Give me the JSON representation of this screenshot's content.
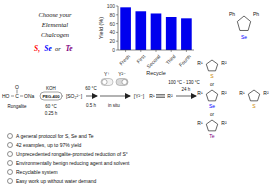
{
  "chart_data": {
    "type": "bar",
    "categories": [
      "Fresh",
      "First",
      "Second",
      "Third",
      "Fourth"
    ],
    "values": [
      97,
      88,
      83,
      75,
      72
    ],
    "color": "#0000ee",
    "xlabel": "Recycle",
    "ylabel": "Yield (%)",
    "ylim": [
      0,
      100
    ],
    "yticks": [
      0,
      20,
      40,
      60,
      80,
      100
    ],
    "grid": false,
    "annotations": [
      {
        "text": "Choose your"
      },
      {
        "text": "Elemental"
      },
      {
        "text": "Chalcogen"
      },
      {
        "text": "S,",
        "color": "red"
      },
      {
        "text": "Se",
        "color": "blue"
      },
      {
        "text": "or"
      },
      {
        "text": "Te",
        "color": "purple"
      },
      {
        "text": "HO"
      },
      {
        "text": "C"
      },
      {
        "text": "O"
      },
      {
        "text": "ONa"
      },
      {
        "text": "Rongalite"
      },
      {
        "text": "KOH"
      },
      {
        "text": "PEG-400"
      },
      {
        "text": "60 °C"
      },
      {
        "text": "0.25 h"
      },
      {
        "text": "[SO₂²⁻]"
      },
      {
        "text": "60 °C"
      },
      {
        "text": "0.5 h"
      },
      {
        "text": "Y⁺"
      },
      {
        "text": "Y²⁻"
      },
      {
        "text": "in situ"
      },
      {
        "text": "[Y²⁻]"
      },
      {
        "text": "R¹"
      },
      {
        "text": "R²"
      },
      {
        "text": "100 °C - 130 °C"
      },
      {
        "text": "24 h"
      },
      {
        "text": "R¹"
      },
      {
        "text": "R²"
      },
      {
        "text": "S",
        "color": "#cc8800"
      },
      {
        "text": "or"
      },
      {
        "text": "R¹"
      },
      {
        "text": "R²"
      },
      {
        "text": "Se",
        "color": "blue"
      },
      {
        "text": "or"
      },
      {
        "text": "R¹"
      },
      {
        "text": "R²"
      },
      {
        "text": "Te",
        "color": "purple"
      },
      {
        "text": "Ph"
      },
      {
        "text": "Ph"
      },
      {
        "text": "Se",
        "color": "blue"
      },
      {
        "text": "R¹"
      },
      {
        "text": "R²"
      },
      {
        "text": "S",
        "color": "#cc8800"
      },
      {
        "text": "A general protocol for S, Se and Te"
      },
      {
        "text": "42 examples, up to 97% yield"
      },
      {
        "text": "Unprecedented rongalite-promoted reduction of S°"
      },
      {
        "text": "Environmentally benign reducing agent and solvent"
      },
      {
        "text": "Recyclable system"
      },
      {
        "text": "Easy work up without water demand"
      }
    ]
  }
}
